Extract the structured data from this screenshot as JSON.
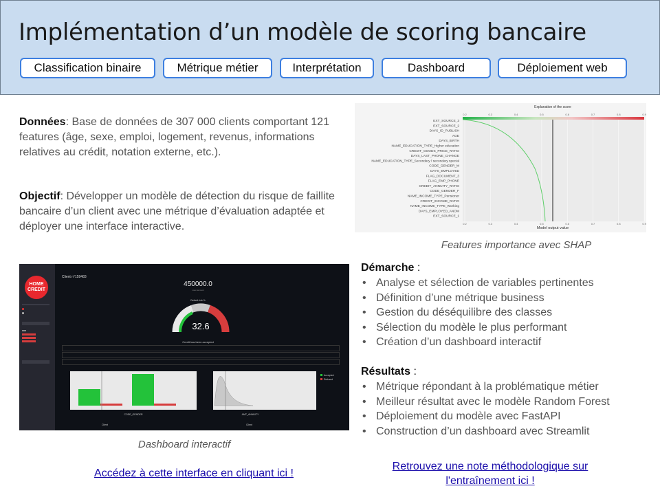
{
  "title": "Implémentation d’un modèle de scoring bancaire",
  "tags": [
    "Classification binaire",
    "Métrique métier",
    "Interprétation",
    "Dashboard",
    "Déploiement web"
  ],
  "donnees": {
    "label": "Données",
    "text": ": Base de données de 307 000 clients comportant 121 features (âge, sexe, emploi, logement, revenus, informations relatives au crédit, notation externe, etc.)."
  },
  "objectif": {
    "label": "Objectif",
    "text": ": Développer un modèle de détection du risque de faillite bancaire d’un client avec une métrique d’évaluation adaptée et déployer une interface interactive."
  },
  "shap": {
    "caption": "Features importance avec SHAP",
    "chart_title": "Explanation of the score",
    "xlabel": "Model output value",
    "ticks": [
      "0.2",
      "0.3",
      "0.4",
      "0.5",
      "0.6",
      "0.7",
      "0.8",
      "0.9"
    ],
    "features": [
      "EXT_SOURCE_3",
      "EXT_SOURCE_2",
      "DAYS_ID_PUBLISH",
      "AGE",
      "DAYS_BIRTH",
      "NAME_EDUCATION_TYPE_Higher education",
      "CREDIT_GOODS_PRICE_RATIO",
      "DAYS_LAST_PHONE_CHANGE",
      "NAME_EDUCATION_TYPE_Secondary / secondary special",
      "CODE_GENDER_M",
      "DAYS_EMPLOYED",
      "FLAG_DOCUMENT_3",
      "FLAG_EMP_PHONE",
      "CREDIT_ANNUITY_RATIO",
      "CODE_GENDER_F",
      "NAME_INCOME_TYPE_Pensioner",
      "CREDIT_INCOME_RATIO",
      "NAME_INCOME_TYPE_Working",
      "DAYS_EMPLOYED_ANOM",
      "EXT_SOURCE_1"
    ]
  },
  "dashboard": {
    "caption": "Dashboard interactif",
    "logo_line1": "HOME",
    "logo_line2": "CREDIT",
    "client": "Client n°159483",
    "amount": "450000.0",
    "amount_sub": "Loan amount",
    "gauge_title": "Default risk %",
    "score": "32.6",
    "status": "Credit has been accepted",
    "bar_xlabel": "CODE_GENDER",
    "dist_xlabel": "AMT_ANNUITY",
    "legend_a": "Accepted",
    "legend_b": "Refused",
    "client_tag": "Client"
  },
  "demarche": {
    "label": "Démarche",
    "suffix": " :",
    "items": [
      "Analyse et sélection de variables pertinentes",
      "Définition d’une métrique business",
      "Gestion du déséquilibre des classes",
      "Sélection du modèle le plus performant",
      "Création d’un dashboard interactif"
    ]
  },
  "resultats": {
    "label": "Résultats",
    "suffix": " :",
    "items": [
      "Métrique répondant à la problématique métier",
      "Meilleur résultat avec le modèle Random Forest",
      "Déploiement du modèle avec FastAPI",
      "Construction d’un dashboard avec Streamlit"
    ]
  },
  "links": {
    "interface": "Accédez à cette interface en cliquant ici !",
    "note_line1": "Retrouvez une note méthodologique sur",
    "note_line2": "l'entraînement ici !"
  },
  "colors": {
    "accent": "#3d7fe0",
    "header_bg": "#c9dcf0",
    "link": "#1a0dab",
    "dash_bg": "#0e1117",
    "green": "#23c23a",
    "red": "#d63d3d"
  }
}
